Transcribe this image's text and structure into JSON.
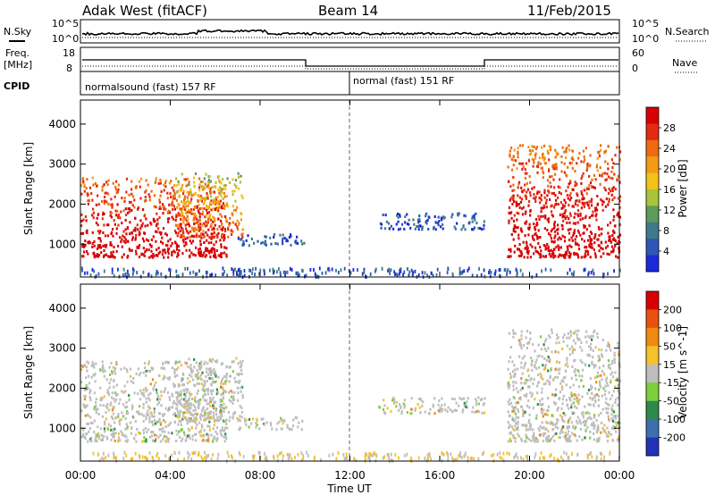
{
  "header": {
    "station": "Adak West (fitACF)",
    "beam": "Beam 14",
    "date": "11/Feb/2015"
  },
  "strip_labels": {
    "nsky": "N.Sky",
    "nsearch": "N.Search",
    "freq_top": "Freq.",
    "freq_unit": "[MHz]",
    "cpid": "CPID",
    "nave": "Nave",
    "noise_hi": "10^5",
    "noise_lo": "10^0",
    "freq_hi": "18",
    "freq_lo": "8",
    "nave_hi": "60",
    "nave_lo": "0"
  },
  "programs": [
    {
      "label": "normalsound (fast) 157 RF",
      "start_hour": 0
    },
    {
      "label": "normal (fast) 151 RF",
      "start_hour": 12
    }
  ],
  "x_axis": {
    "label": "Time UT",
    "ticks": [
      "00:00",
      "04:00",
      "08:00",
      "12:00",
      "16:00",
      "20:00",
      "00:00"
    ]
  },
  "chart_data": [
    {
      "type": "heatmap",
      "title": "Power",
      "xlabel": "Time UT",
      "ylabel": "Slant Range [km]",
      "xlim": [
        0,
        24
      ],
      "ylim": [
        180,
        4600
      ],
      "yticks": [
        1000,
        2000,
        3000,
        4000
      ],
      "colorbar": {
        "label": "Power [dB]",
        "ticks": [
          "4",
          "8",
          "12",
          "16",
          "20",
          "24",
          "28"
        ],
        "colors": [
          "#1b2ad8",
          "#2e56b6",
          "#3f7a8c",
          "#5e9a5a",
          "#a9c43a",
          "#f2c21a",
          "#f49b16",
          "#ee6a10",
          "#e52a10",
          "#d80000"
        ]
      },
      "regions": [
        {
          "t0": 0.0,
          "t1": 6.5,
          "r0": 700,
          "r1": 2700,
          "level": "strong"
        },
        {
          "t0": 4.2,
          "t1": 7.2,
          "r0": 1200,
          "r1": 2800,
          "level": "medium"
        },
        {
          "t0": 7.0,
          "t1": 10.0,
          "r0": 1000,
          "r1": 1300,
          "level": "weak"
        },
        {
          "t0": 13.2,
          "t1": 18.0,
          "r0": 1400,
          "r1": 1800,
          "level": "weak"
        },
        {
          "t0": 19.0,
          "t1": 24.0,
          "r0": 700,
          "r1": 3500,
          "level": "strong"
        }
      ]
    },
    {
      "type": "heatmap",
      "title": "Velocity",
      "xlabel": "Time UT",
      "ylabel": "Slant Range [km]",
      "xlim": [
        0,
        24
      ],
      "ylim": [
        180,
        4600
      ],
      "yticks": [
        1000,
        2000,
        3000,
        4000
      ],
      "colorbar": {
        "label": "Velocity [m s^-1]",
        "ticks": [
          "200",
          "100",
          "50",
          "15",
          "-15",
          "-50",
          "-100",
          "-200"
        ],
        "colors": [
          "#2233b8",
          "#3d6fb0",
          "#2d8a4a",
          "#7ccf3c",
          "#bebebe",
          "#f6c12a",
          "#f08a12",
          "#e8520e",
          "#d80000"
        ]
      },
      "regions": [
        {
          "t0": 0.0,
          "t1": 6.5,
          "r0": 700,
          "r1": 2700,
          "level": "ground"
        },
        {
          "t0": 4.2,
          "t1": 7.2,
          "r0": 1200,
          "r1": 2800,
          "level": "ground"
        },
        {
          "t0": 7.0,
          "t1": 10.0,
          "r0": 1000,
          "r1": 1300,
          "level": "ground"
        },
        {
          "t0": 13.2,
          "t1": 18.0,
          "r0": 1400,
          "r1": 1800,
          "level": "ground"
        },
        {
          "t0": 19.0,
          "t1": 24.0,
          "r0": 700,
          "r1": 3500,
          "level": "ground"
        }
      ]
    }
  ]
}
